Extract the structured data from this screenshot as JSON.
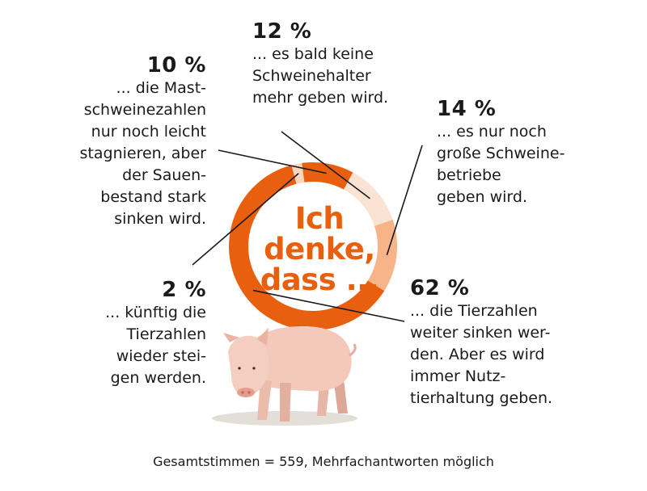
{
  "chart_data": {
    "type": "pie",
    "variant": "donut",
    "center_label": "Ich\ndenke,\ndass ...",
    "slices": [
      {
        "value": 62,
        "pct_label": "62 %",
        "description": "... die Tierzahlen\nweiter sinken wer-\nden. Aber es wird\nimmer Nutz-\ntierhaltung geben.",
        "color": "#e8600f"
      },
      {
        "value": 2,
        "pct_label": "2 %",
        "description": "... künftig die\nTierzahlen\nwieder stei-\ngen werden.",
        "color": "#f9d6bf"
      },
      {
        "value": 10,
        "pct_label": "10 %",
        "description": "... die Mast-\nschweinezahlen\nnur noch leicht\nstagnieren, aber\nder Sauen-\nbestand stark\nsinken wird.",
        "color": "#e8600f"
      },
      {
        "value": 12,
        "pct_label": "12 %",
        "description": "... es bald keine\nSchweinehalter\nmehr geben wird.",
        "color": "#fbe3d3"
      },
      {
        "value": 14,
        "pct_label": "14 %",
        "description": "... es nur noch\ngroße Schweine-\nbetriebe\ngeben wird.",
        "color": "#f6b488"
      }
    ],
    "footnote": "Gesamtstimmen = 559, Mehrfachantworten möglich"
  },
  "colors": {
    "accent": "#e8600f",
    "text": "#1a1a1a"
  },
  "image": {
    "icon": "pig-illustration"
  }
}
